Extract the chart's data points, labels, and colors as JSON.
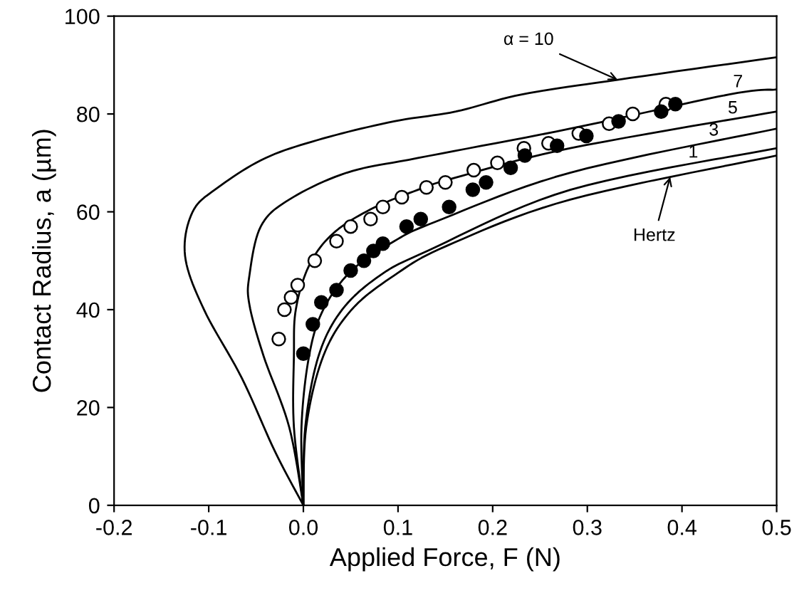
{
  "chart_data": {
    "type": "line",
    "xlabel": "Applied Force, F (N)",
    "ylabel": "Contact Radius, a (µm)",
    "xlim": [
      -0.2,
      0.5
    ],
    "ylim": [
      0,
      100
    ],
    "xticks": [
      {
        "value": -0.2,
        "label": "-0.2"
      },
      {
        "value": -0.1,
        "label": "-0.1"
      },
      {
        "value": 0,
        "label": "0.0"
      },
      {
        "value": 0.1,
        "label": "0.1"
      },
      {
        "value": 0.2,
        "label": "0.2"
      },
      {
        "value": 0.3,
        "label": "0.3"
      },
      {
        "value": 0.4,
        "label": "0.4"
      },
      {
        "value": 0.5,
        "label": "0.5"
      }
    ],
    "yticks": [
      0,
      20,
      40,
      60,
      80,
      100
    ],
    "grid": false,
    "series": [
      {
        "name": "α = 10",
        "color": "#000000",
        "x": [
          0,
          -0.03,
          -0.065,
          -0.105,
          -0.125,
          -0.117,
          -0.09,
          -0.04,
          0.021,
          0.096,
          0.161,
          0.231,
          0.332,
          0.5
        ],
        "values": [
          0,
          11,
          26,
          40,
          51,
          60,
          65,
          71,
          75,
          78.5,
          80.5,
          84,
          87,
          91.6
        ]
      },
      {
        "name": "7",
        "color": "#000000",
        "x": [
          0,
          -0.015,
          -0.042,
          -0.057,
          -0.057,
          -0.045,
          -0.015,
          0.046,
          0.121,
          0.282,
          0.45,
          0.5
        ],
        "values": [
          0,
          16,
          30.5,
          41,
          47,
          57,
          62.5,
          68,
          71,
          77,
          84,
          85
        ]
      },
      {
        "name": "5",
        "color": "#000000",
        "x": [
          0,
          -0.01,
          -0.01,
          -0.008,
          0.006,
          0.031,
          0.071,
          0.121,
          0.161,
          0.282,
          0.5
        ],
        "values": [
          0,
          16,
          30.5,
          40,
          49,
          55.5,
          60.5,
          64.5,
          67,
          73,
          80.5
        ]
      },
      {
        "name": "3",
        "color": "#000000",
        "x": [
          0,
          -0.002,
          0.006,
          0.021,
          0.051,
          0.096,
          0.14,
          0.282,
          0.5
        ],
        "values": [
          0,
          16,
          30.5,
          40,
          48,
          54,
          58,
          68,
          77
        ]
      },
      {
        "name": "1",
        "color": "#000000",
        "x": [
          0,
          0.002,
          0.016,
          0.041,
          0.081,
          0.131,
          0.282,
          0.5
        ],
        "values": [
          0,
          16,
          30.5,
          40,
          47,
          52,
          64.5,
          73
        ]
      },
      {
        "name": "Hertz",
        "color": "#000000",
        "x": [
          0,
          0.003,
          0.021,
          0.051,
          0.096,
          0.151,
          0.282,
          0.5
        ],
        "values": [
          0,
          16,
          30.5,
          40,
          47,
          53,
          62.5,
          71.5
        ]
      },
      {
        "type": "scatter",
        "color": "#ffffff",
        "marker": "circle",
        "x": [
          -0.026,
          -0.02,
          -0.013,
          -0.006,
          0.012,
          0.035,
          0.05,
          0.071,
          0.084,
          0.104,
          0.13,
          0.15,
          0.18,
          0.205,
          0.233,
          0.259,
          0.291,
          0.323,
          0.348,
          0.383
        ],
        "values": [
          34,
          40,
          42.5,
          45,
          50,
          54,
          57,
          58.5,
          61,
          63,
          65,
          66,
          68.5,
          70,
          73,
          74,
          76,
          78,
          80,
          82
        ]
      },
      {
        "type": "scatter",
        "color": "#000000",
        "marker": "circle",
        "x": [
          0,
          0.01,
          0.019,
          0.035,
          0.05,
          0.064,
          0.074,
          0.084,
          0.109,
          0.124,
          0.154,
          0.179,
          0.193,
          0.219,
          0.234,
          0.268,
          0.299,
          0.333,
          0.378,
          0.393
        ],
        "values": [
          31,
          37,
          41.5,
          44,
          48,
          50,
          52,
          53.5,
          57,
          58.5,
          61,
          64.5,
          66,
          69,
          71.5,
          73.5,
          75.5,
          78.5,
          80.5,
          82
        ]
      }
    ]
  }
}
